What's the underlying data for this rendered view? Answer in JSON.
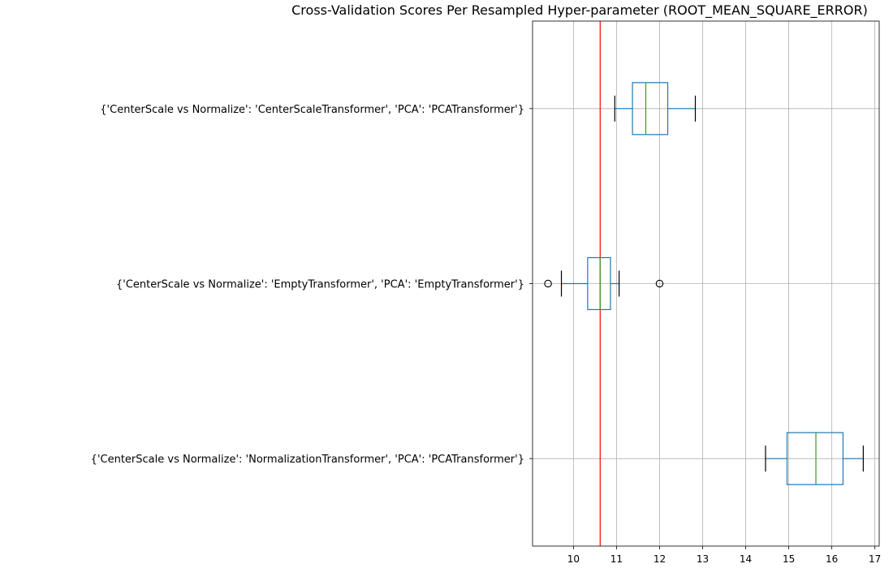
{
  "chart_data": {
    "type": "boxplot",
    "orientation": "horizontal",
    "title": "Cross-Validation Scores Per Resampled Hyper-parameter (ROOT_MEAN_SQUARE_ERROR)",
    "xlabel": "",
    "ylabel": "",
    "xlim": [
      9.05,
      17.1
    ],
    "xticks": [
      10,
      11,
      12,
      13,
      14,
      15,
      16,
      17
    ],
    "grid": true,
    "reference_line": {
      "value": 10.62,
      "color": "#ff0000"
    },
    "colors": {
      "box": "#1f77b4",
      "median": "#2ca02c",
      "whisker_cap": "#000000",
      "grid": "#b0b0b0",
      "highlight_label": "#ff0000",
      "default_label": "#000000"
    },
    "categories": [
      {
        "label": "{'CenterScale vs Normalize': 'CenterScaleTransformer', 'PCA': 'PCATransformer'}",
        "highlight": false,
        "whisker_low": 10.96,
        "q1": 11.37,
        "median": 11.68,
        "q3": 12.19,
        "whisker_high": 12.83,
        "outliers": []
      },
      {
        "label": "{'CenterScale vs Normalize': 'EmptyTransformer', 'PCA': 'EmptyTransformer'}",
        "highlight": true,
        "whisker_low": 9.72,
        "q1": 10.33,
        "median": 10.62,
        "q3": 10.86,
        "whisker_high": 11.06,
        "outliers": [
          9.41,
          12.0
        ]
      },
      {
        "label": "{'CenterScale vs Normalize': 'NormalizationTransformer', 'PCA': 'PCATransformer'}",
        "highlight": false,
        "whisker_low": 14.46,
        "q1": 14.96,
        "median": 15.63,
        "q3": 16.26,
        "whisker_high": 16.73,
        "outliers": []
      }
    ]
  }
}
